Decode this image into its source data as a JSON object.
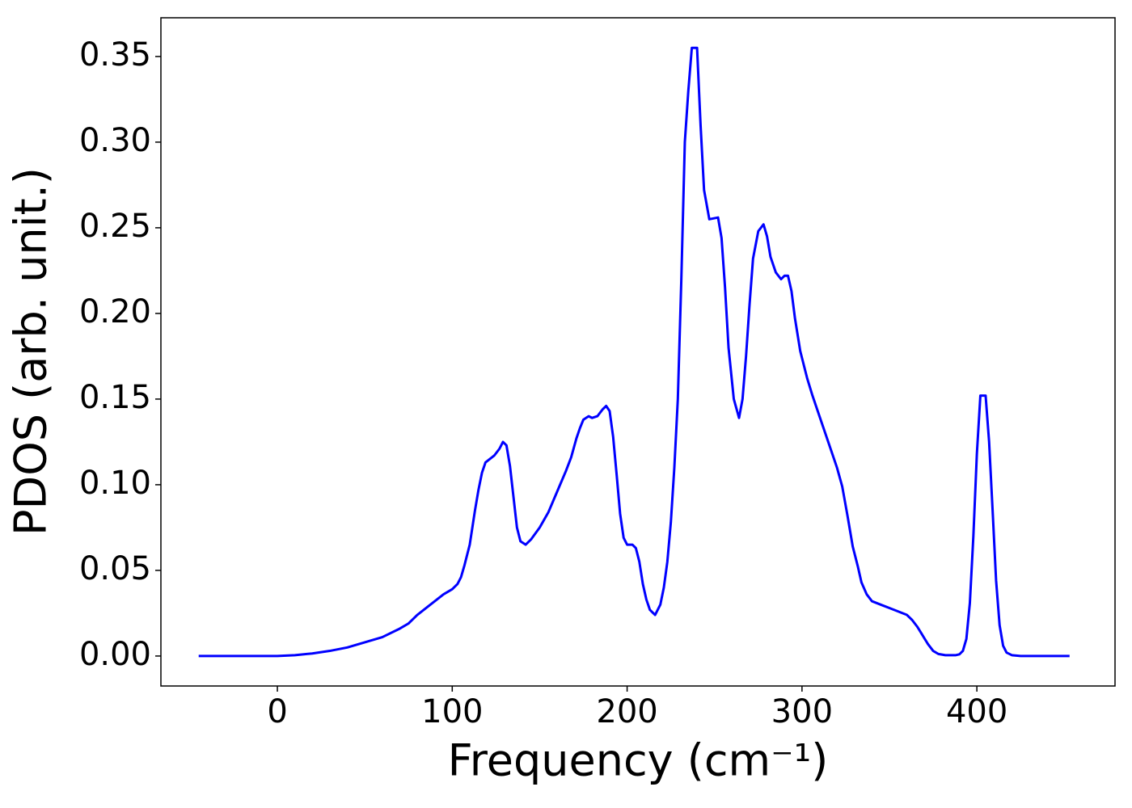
{
  "chart_data": {
    "type": "line",
    "xlabel": "Frequency (cm⁻¹)",
    "ylabel": "PDOS (arb. unit.)",
    "color": "#0000ff",
    "x": [
      -45,
      0,
      10,
      20,
      30,
      40,
      50,
      60,
      70,
      75,
      80,
      85,
      90,
      95,
      100,
      103,
      105,
      107,
      110,
      113,
      115,
      117,
      119,
      124,
      127,
      129,
      131,
      133,
      135,
      137,
      139,
      142,
      145,
      150,
      155,
      160,
      165,
      168,
      171,
      173,
      175,
      178,
      180,
      183,
      186,
      188,
      190,
      192,
      194,
      196,
      198,
      200,
      203,
      205,
      207,
      209,
      211,
      213,
      216,
      219,
      221,
      223,
      225,
      227,
      229,
      231,
      233,
      235,
      237,
      240,
      242,
      244,
      247,
      252,
      254,
      256,
      258,
      261,
      264,
      266,
      268,
      270,
      272,
      275,
      278,
      280,
      282,
      285,
      288,
      290,
      292,
      294,
      296,
      299,
      303,
      306,
      310,
      315,
      320,
      323,
      326,
      329,
      332,
      334,
      337,
      340,
      345,
      350,
      355,
      360,
      363,
      366,
      369,
      372,
      375,
      378,
      382,
      388,
      390,
      392,
      394,
      396,
      398,
      400,
      402,
      405,
      407,
      409,
      411,
      413,
      415,
      417,
      420,
      425,
      453
    ],
    "values": [
      0,
      0,
      0.0005,
      0.0015,
      0.003,
      0.005,
      0.008,
      0.011,
      0.016,
      0.019,
      0.024,
      0.028,
      0.032,
      0.036,
      0.039,
      0.042,
      0.046,
      0.053,
      0.065,
      0.085,
      0.097,
      0.107,
      0.113,
      0.117,
      0.121,
      0.125,
      0.123,
      0.111,
      0.093,
      0.075,
      0.067,
      0.065,
      0.068,
      0.075,
      0.084,
      0.096,
      0.108,
      0.116,
      0.127,
      0.133,
      0.138,
      0.14,
      0.139,
      0.14,
      0.144,
      0.146,
      0.143,
      0.128,
      0.106,
      0.083,
      0.069,
      0.065,
      0.065,
      0.063,
      0.055,
      0.042,
      0.033,
      0.027,
      0.024,
      0.03,
      0.04,
      0.055,
      0.078,
      0.11,
      0.15,
      0.22,
      0.3,
      0.33,
      0.355,
      0.355,
      0.31,
      0.272,
      0.255,
      0.256,
      0.244,
      0.215,
      0.18,
      0.15,
      0.139,
      0.15,
      0.175,
      0.205,
      0.232,
      0.248,
      0.252,
      0.245,
      0.233,
      0.224,
      0.22,
      0.222,
      0.222,
      0.213,
      0.197,
      0.178,
      0.162,
      0.152,
      0.14,
      0.125,
      0.11,
      0.099,
      0.082,
      0.064,
      0.052,
      0.043,
      0.036,
      0.032,
      0.03,
      0.028,
      0.026,
      0.024,
      0.021,
      0.017,
      0.012,
      0.007,
      0.003,
      0.0012,
      0.0005,
      0.0005,
      0.001,
      0.003,
      0.01,
      0.031,
      0.07,
      0.118,
      0.152,
      0.152,
      0.125,
      0.085,
      0.044,
      0.018,
      0.006,
      0.002,
      0.0005,
      0,
      0
    ],
    "xlim": [
      -66.6,
      479
    ],
    "ylim": [
      -0.0175,
      0.3726
    ],
    "xticks": [
      0,
      100,
      200,
      300,
      400
    ],
    "yticks": [
      {
        "value": 0,
        "label": "0.00"
      },
      {
        "value": 0.05,
        "label": "0.05"
      },
      {
        "value": 0.1,
        "label": "0.10"
      },
      {
        "value": 0.15,
        "label": "0.15"
      },
      {
        "value": 0.2,
        "label": "0.20"
      },
      {
        "value": 0.25,
        "label": "0.25"
      },
      {
        "value": 0.3,
        "label": "0.30"
      },
      {
        "value": 0.35,
        "label": "0.35"
      }
    ],
    "grid": false
  }
}
